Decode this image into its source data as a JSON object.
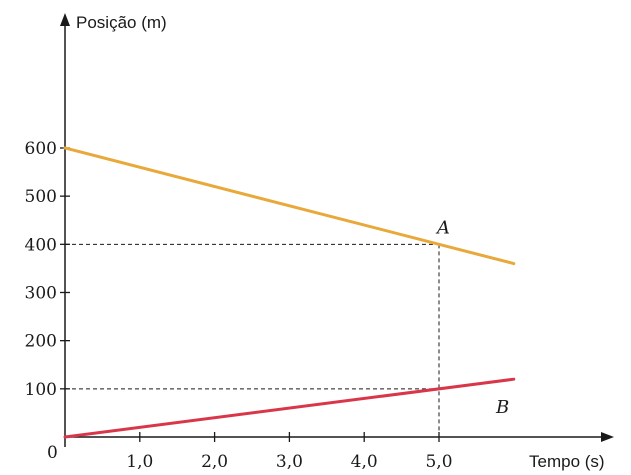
{
  "chart_data": {
    "type": "line",
    "ylabel": "Posição (m)",
    "xlabel": "Tempo (s)",
    "origin_label": "0",
    "xlim": [
      0,
      6.0
    ],
    "ylim": [
      0,
      600
    ],
    "x_ticks": [
      {
        "value": 1.0,
        "label": "1,0"
      },
      {
        "value": 2.0,
        "label": "2,0"
      },
      {
        "value": 3.0,
        "label": "3,0"
      },
      {
        "value": 4.0,
        "label": "4,0"
      },
      {
        "value": 5.0,
        "label": "5,0"
      }
    ],
    "y_ticks": [
      {
        "value": 100,
        "label": "100"
      },
      {
        "value": 200,
        "label": "200"
      },
      {
        "value": 300,
        "label": "300"
      },
      {
        "value": 400,
        "label": "400"
      },
      {
        "value": 500,
        "label": "500"
      },
      {
        "value": 600,
        "label": "600"
      }
    ],
    "series": [
      {
        "name": "A",
        "color": "#e8a93a",
        "points": [
          [
            0,
            600
          ],
          [
            6.0,
            360
          ]
        ]
      },
      {
        "name": "B",
        "color": "#d9364a",
        "points": [
          [
            0,
            0
          ],
          [
            6.0,
            120
          ]
        ]
      }
    ],
    "guides": [
      {
        "x": 5.0,
        "y": 400
      },
      {
        "x": 5.0,
        "y": 100
      }
    ],
    "grid": false
  }
}
